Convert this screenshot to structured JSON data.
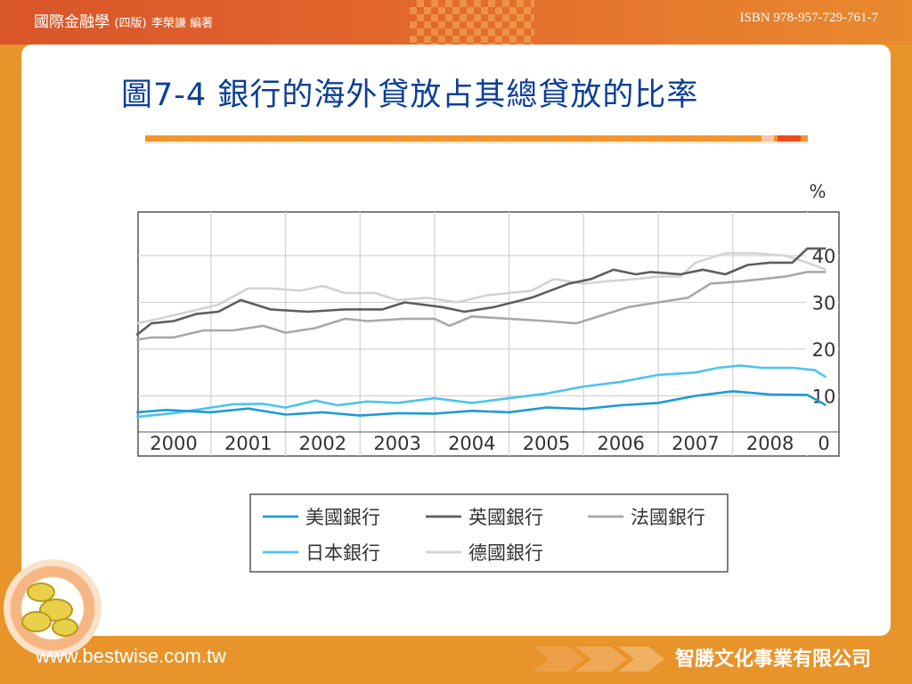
{
  "header": {
    "book_title": "國際金融學",
    "edition": "(四版)",
    "author": "李榮謙 編著",
    "isbn": "ISBN 978-957-729-761-7"
  },
  "slide": {
    "title_prefix": "圖7-4",
    "title_text": "銀行的海外貸放占其總貸放的比率"
  },
  "footer": {
    "website": "www.bestwise.com.tw",
    "company": "智勝文化事業有限公司"
  },
  "colors": {
    "us": "#1f9ad6",
    "uk": "#5e5e5e",
    "fr": "#a8a8a8",
    "jp": "#4cc3ee",
    "de": "#d2d2d2"
  },
  "chart_data": {
    "type": "line",
    "title": "",
    "xlabel": "",
    "ylabel": "%",
    "ylim": [
      0,
      45
    ],
    "yticks": [
      0,
      10,
      20,
      30,
      40
    ],
    "xlim": [
      1999.5,
      2008.8
    ],
    "xticks": [
      "2000",
      "2001",
      "2002",
      "2003",
      "2004",
      "2005",
      "2006",
      "2007",
      "2008"
    ],
    "grid": true,
    "legend": "bottom",
    "series": [
      {
        "name": "美國銀行",
        "key": "us",
        "x": [
          1999.5,
          1999.9,
          2000.5,
          2001.0,
          2001.5,
          2002.0,
          2002.5,
          2003.0,
          2003.5,
          2004.0,
          2004.5,
          2005.0,
          2005.5,
          2006.0,
          2006.5,
          2007.0,
          2007.5,
          2008.0,
          2008.5,
          2008.75
        ],
        "y": [
          6.5,
          7,
          6.5,
          7.3,
          6,
          6.5,
          5.8,
          6.3,
          6.2,
          6.8,
          6.5,
          7.5,
          7.2,
          8,
          8.5,
          10,
          11,
          10.3,
          10.2,
          8
        ]
      },
      {
        "name": "英國銀行",
        "key": "uk",
        "x": [
          1999.5,
          1999.7,
          2000.0,
          2000.3,
          2000.6,
          2000.9,
          2001.3,
          2001.8,
          2002.3,
          2002.8,
          2003.1,
          2003.6,
          2003.9,
          2004.3,
          2004.8,
          2005.3,
          2005.6,
          2005.9,
          2006.2,
          2006.4,
          2006.8,
          2007.1,
          2007.4,
          2007.7,
          2008.0,
          2008.3,
          2008.5,
          2008.75
        ],
        "y": [
          23,
          25.5,
          26,
          27.5,
          28,
          30.5,
          28.5,
          28,
          28.5,
          28.5,
          30,
          29,
          28,
          29,
          31,
          34,
          35,
          37,
          36,
          36.5,
          36,
          37,
          36,
          38,
          38.5,
          38.5,
          41.5,
          41.5
        ]
      },
      {
        "name": "法國銀行",
        "key": "fr",
        "x": [
          1999.5,
          1999.7,
          2000.0,
          2000.4,
          2000.8,
          2001.2,
          2001.5,
          2001.9,
          2002.3,
          2002.6,
          2003.1,
          2003.5,
          2003.7,
          2004.0,
          2004.5,
          2005.0,
          2005.4,
          2005.8,
          2006.1,
          2006.5,
          2006.9,
          2007.2,
          2007.6,
          2007.9,
          2008.2,
          2008.5,
          2008.75
        ],
        "y": [
          22,
          22.5,
          22.5,
          24,
          24,
          25,
          23.5,
          24.5,
          26.5,
          26,
          26.5,
          26.5,
          25,
          27,
          26.5,
          26,
          25.5,
          27.5,
          29,
          30,
          31,
          34,
          34.5,
          35,
          35.5,
          36.5,
          36.5
        ]
      },
      {
        "name": "日本銀行",
        "key": "jp",
        "x": [
          1999.5,
          2000.0,
          2000.5,
          2000.8,
          2001.2,
          2001.5,
          2001.9,
          2002.2,
          2002.6,
          2003.0,
          2003.5,
          2004.0,
          2004.5,
          2005.0,
          2005.5,
          2006.0,
          2006.5,
          2007.0,
          2007.3,
          2007.6,
          2007.9,
          2008.3,
          2008.6,
          2008.75
        ],
        "y": [
          5.5,
          6.3,
          7.5,
          8.2,
          8.3,
          7.5,
          9,
          8,
          8.8,
          8.5,
          9.5,
          8.5,
          9.5,
          10.5,
          12,
          13,
          14.5,
          15,
          16,
          16.5,
          16,
          16,
          15.5,
          14
        ]
      },
      {
        "name": "德國銀行",
        "key": "de",
        "x": [
          1999.5,
          1999.8,
          2000.2,
          2000.6,
          2001.0,
          2001.3,
          2001.7,
          2002.0,
          2002.3,
          2002.7,
          2003.0,
          2003.4,
          2003.8,
          2004.2,
          2004.5,
          2004.8,
          2005.1,
          2005.5,
          2005.8,
          2006.2,
          2006.5,
          2006.8,
          2007.0,
          2007.4,
          2007.8,
          2008.2,
          2008.5,
          2008.75
        ],
        "y": [
          25.5,
          26.5,
          28,
          29.5,
          33,
          33,
          32.5,
          33.5,
          32,
          32,
          30.5,
          31,
          30,
          31.5,
          32,
          32.5,
          35,
          34,
          34.5,
          35,
          35.5,
          35.5,
          38.5,
          40.5,
          40.5,
          40,
          38.5,
          37
        ]
      }
    ]
  }
}
